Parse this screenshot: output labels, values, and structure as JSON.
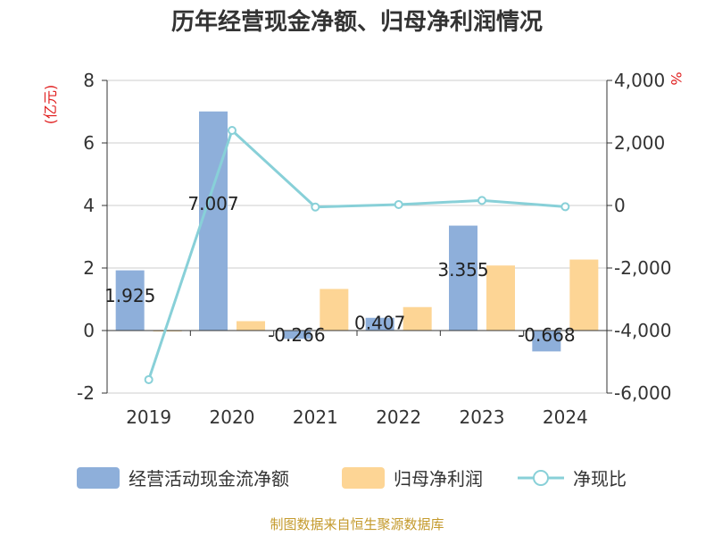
{
  "chart_data": {
    "type": "bar",
    "title": "历年经营现金净额、归母净利润情况",
    "categories": [
      "2019",
      "2020",
      "2021",
      "2022",
      "2023",
      "2024"
    ],
    "series": [
      {
        "name": "经营活动现金流净额",
        "type": "bar",
        "axis": "left",
        "values": [
          1.925,
          7.007,
          -0.266,
          0.407,
          3.355,
          -0.668
        ],
        "labels": [
          "1.925",
          "7.007",
          "-0.266",
          "0.407",
          "3.355",
          "-0.668"
        ]
      },
      {
        "name": "归母净利润",
        "type": "bar",
        "axis": "left",
        "values": [
          -0.03,
          0.3,
          1.33,
          0.75,
          2.08,
          2.27
        ]
      },
      {
        "name": "净现比",
        "type": "line",
        "axis": "right",
        "values": [
          -5570,
          2400,
          -50,
          30,
          160,
          -40
        ]
      }
    ],
    "left_axis": {
      "unit": "(亿元)",
      "ylim": [
        -2,
        8
      ],
      "ticks": [
        8,
        6,
        4,
        2,
        0,
        -2
      ],
      "tick_labels": [
        "8",
        "6",
        "4",
        "2",
        "0",
        "-2"
      ]
    },
    "right_axis": {
      "unit": "%",
      "ylim": [
        -6000,
        4000
      ],
      "ticks": [
        4000,
        2000,
        0,
        -2000,
        -4000,
        -6000
      ],
      "tick_labels": [
        "4,000",
        "2,000",
        "0",
        "-2,000",
        "-4,000",
        "-6,000"
      ]
    },
    "colors": {
      "cashflow": "#8eafda",
      "profit": "#fdd595",
      "ratio": "#88d0d8"
    },
    "grid": true,
    "legend_position": "bottom"
  },
  "source": "制图数据来自恒生聚源数据库"
}
